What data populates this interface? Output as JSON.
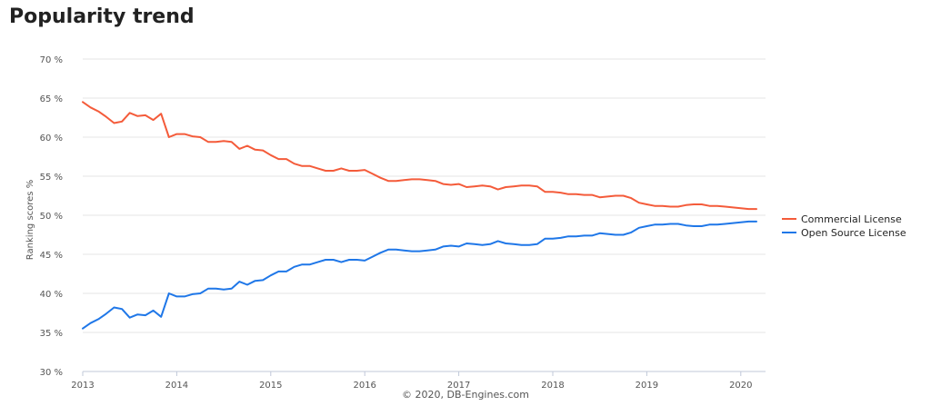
{
  "title": "Popularity trend",
  "credit": "© 2020, DB-Engines.com",
  "chart_data": {
    "type": "line",
    "title": "Popularity trend",
    "xlabel": "",
    "ylabel": "Ranking scores %",
    "x_ticks": [
      "2013",
      "2014",
      "2015",
      "2016",
      "2017",
      "2018",
      "2019",
      "2020"
    ],
    "y_ticks": [
      "30 %",
      "35 %",
      "40 %",
      "45 %",
      "50 %",
      "55 %",
      "60 %",
      "65 %",
      "70 %"
    ],
    "ylim": [
      30,
      70
    ],
    "xlim": [
      "2013-01",
      "2020-03"
    ],
    "grid": true,
    "legend": "right",
    "x": [
      "2013-01",
      "2013-02",
      "2013-03",
      "2013-04",
      "2013-05",
      "2013-06",
      "2013-07",
      "2013-08",
      "2013-09",
      "2013-10",
      "2013-11",
      "2013-12",
      "2014-01",
      "2014-02",
      "2014-03",
      "2014-04",
      "2014-05",
      "2014-06",
      "2014-07",
      "2014-08",
      "2014-09",
      "2014-10",
      "2014-11",
      "2014-12",
      "2015-01",
      "2015-02",
      "2015-03",
      "2015-04",
      "2015-05",
      "2015-06",
      "2015-07",
      "2015-08",
      "2015-09",
      "2015-10",
      "2015-11",
      "2015-12",
      "2016-01",
      "2016-02",
      "2016-03",
      "2016-04",
      "2016-05",
      "2016-06",
      "2016-07",
      "2016-08",
      "2016-09",
      "2016-10",
      "2016-11",
      "2016-12",
      "2017-01",
      "2017-02",
      "2017-03",
      "2017-04",
      "2017-05",
      "2017-06",
      "2017-07",
      "2017-08",
      "2017-09",
      "2017-10",
      "2017-11",
      "2017-12",
      "2018-01",
      "2018-02",
      "2018-03",
      "2018-04",
      "2018-05",
      "2018-06",
      "2018-07",
      "2018-08",
      "2018-09",
      "2018-10",
      "2018-11",
      "2018-12",
      "2019-01",
      "2019-02",
      "2019-03",
      "2019-04",
      "2019-05",
      "2019-06",
      "2019-07",
      "2019-08",
      "2019-09",
      "2019-10",
      "2019-11",
      "2019-12",
      "2020-01",
      "2020-02",
      "2020-03"
    ],
    "series": [
      {
        "name": "Commercial License",
        "color": "#f45b3a",
        "values": [
          64.5,
          63.8,
          63.3,
          62.6,
          61.8,
          62.0,
          63.1,
          62.7,
          62.8,
          62.2,
          63.0,
          60.0,
          60.4,
          60.4,
          60.1,
          60.0,
          59.4,
          59.4,
          59.5,
          59.4,
          58.5,
          58.9,
          58.4,
          58.3,
          57.7,
          57.2,
          57.2,
          56.6,
          56.3,
          56.3,
          56.0,
          55.7,
          55.7,
          56.0,
          55.7,
          55.7,
          55.8,
          55.3,
          54.8,
          54.4,
          54.4,
          54.5,
          54.6,
          54.6,
          54.5,
          54.4,
          54.0,
          53.9,
          54.0,
          53.6,
          53.7,
          53.8,
          53.7,
          53.3,
          53.6,
          53.7,
          53.8,
          53.8,
          53.7,
          53.0,
          53.0,
          52.9,
          52.7,
          52.7,
          52.6,
          52.6,
          52.3,
          52.4,
          52.5,
          52.5,
          52.2,
          51.6,
          51.4,
          51.2,
          51.2,
          51.1,
          51.1,
          51.3,
          51.4,
          51.4,
          51.2,
          51.2,
          51.1,
          51.0,
          50.9,
          50.8,
          50.8
        ]
      },
      {
        "name": "Open Source License",
        "color": "#1f77e8",
        "values": [
          35.5,
          36.2,
          36.7,
          37.4,
          38.2,
          38.0,
          36.9,
          37.3,
          37.2,
          37.8,
          37.0,
          40.0,
          39.6,
          39.6,
          39.9,
          40.0,
          40.6,
          40.6,
          40.5,
          40.6,
          41.5,
          41.1,
          41.6,
          41.7,
          42.3,
          42.8,
          42.8,
          43.4,
          43.7,
          43.7,
          44.0,
          44.3,
          44.3,
          44.0,
          44.3,
          44.3,
          44.2,
          44.7,
          45.2,
          45.6,
          45.6,
          45.5,
          45.4,
          45.4,
          45.5,
          45.6,
          46.0,
          46.1,
          46.0,
          46.4,
          46.3,
          46.2,
          46.3,
          46.7,
          46.4,
          46.3,
          46.2,
          46.2,
          46.3,
          47.0,
          47.0,
          47.1,
          47.3,
          47.3,
          47.4,
          47.4,
          47.7,
          47.6,
          47.5,
          47.5,
          47.8,
          48.4,
          48.6,
          48.8,
          48.8,
          48.9,
          48.9,
          48.7,
          48.6,
          48.6,
          48.8,
          48.8,
          48.9,
          49.0,
          49.1,
          49.2,
          49.2
        ]
      }
    ]
  }
}
